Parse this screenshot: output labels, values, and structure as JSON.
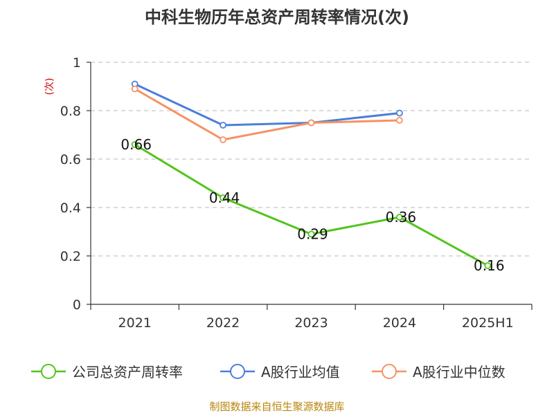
{
  "chart_data": {
    "type": "line",
    "title": "中科生物历年总资产周转率情况(次)",
    "ylabel": "(次)",
    "xlabel": "",
    "categories": [
      "2021",
      "2022",
      "2023",
      "2024",
      "2025H1"
    ],
    "ylim": [
      0,
      1
    ],
    "yticks": [
      "0",
      "0.2",
      "0.4",
      "0.6",
      "0.8",
      "1"
    ],
    "grid": true,
    "legend_position": "bottom",
    "series": [
      {
        "name": "公司总资产周转率",
        "color": "#52c41a",
        "values": [
          0.66,
          0.44,
          0.29,
          0.36,
          0.16
        ],
        "labels": [
          "0.66",
          "0.44",
          "0.29",
          "0.36",
          "0.16"
        ]
      },
      {
        "name": "A股行业均值",
        "color": "#4a7fd9",
        "values": [
          0.91,
          0.74,
          0.75,
          0.79,
          null
        ],
        "labels": []
      },
      {
        "name": "A股行业中位数",
        "color": "#f59263",
        "values": [
          0.89,
          0.68,
          0.75,
          0.76,
          null
        ],
        "labels": []
      }
    ],
    "source": "制图数据来自恒生聚源数据库"
  }
}
